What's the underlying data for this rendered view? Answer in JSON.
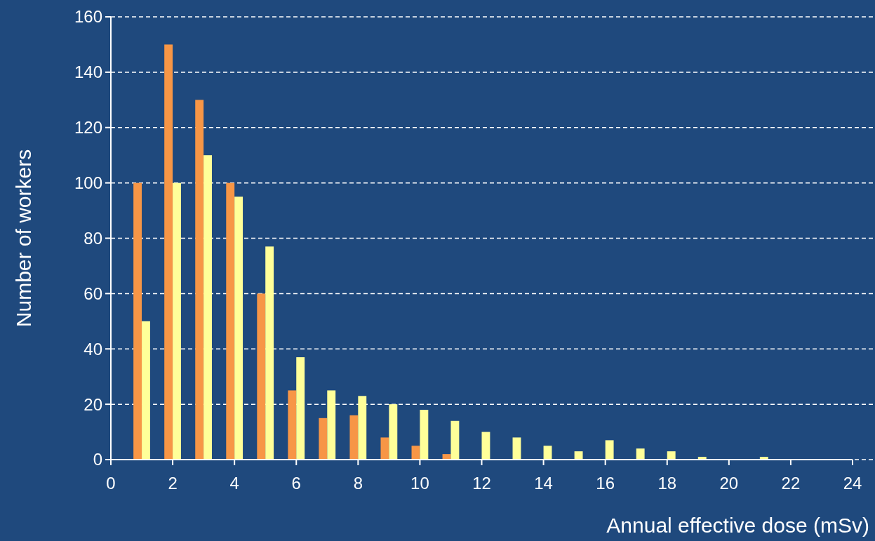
{
  "chart_data": {
    "type": "bar",
    "xlabel": "Annual effective dose (mSv)",
    "ylabel": "Number of workers",
    "x": [
      1,
      2,
      3,
      4,
      5,
      6,
      7,
      8,
      9,
      10,
      11,
      12,
      13,
      14,
      15,
      16,
      17,
      18,
      19,
      20,
      21
    ],
    "series": [
      {
        "color": "#f79646",
        "values": [
          100,
          150,
          130,
          100,
          60,
          25,
          15,
          16,
          8,
          5,
          2,
          null,
          null,
          null,
          null,
          null,
          null,
          null,
          null,
          null,
          null
        ]
      },
      {
        "color": "#ffff99",
        "values": [
          50,
          100,
          110,
          95,
          77,
          37,
          25,
          23,
          20,
          18,
          14,
          10,
          8,
          5,
          3,
          7,
          4,
          3,
          1,
          0,
          1
        ]
      }
    ],
    "xlim": [
      0,
      24
    ],
    "xticks": [
      0,
      2,
      4,
      6,
      8,
      10,
      12,
      14,
      16,
      18,
      20,
      22,
      24
    ],
    "ylim": [
      0,
      160
    ],
    "yticks": [
      0,
      20,
      40,
      60,
      80,
      100,
      120,
      140,
      160
    ],
    "grid": "y"
  }
}
